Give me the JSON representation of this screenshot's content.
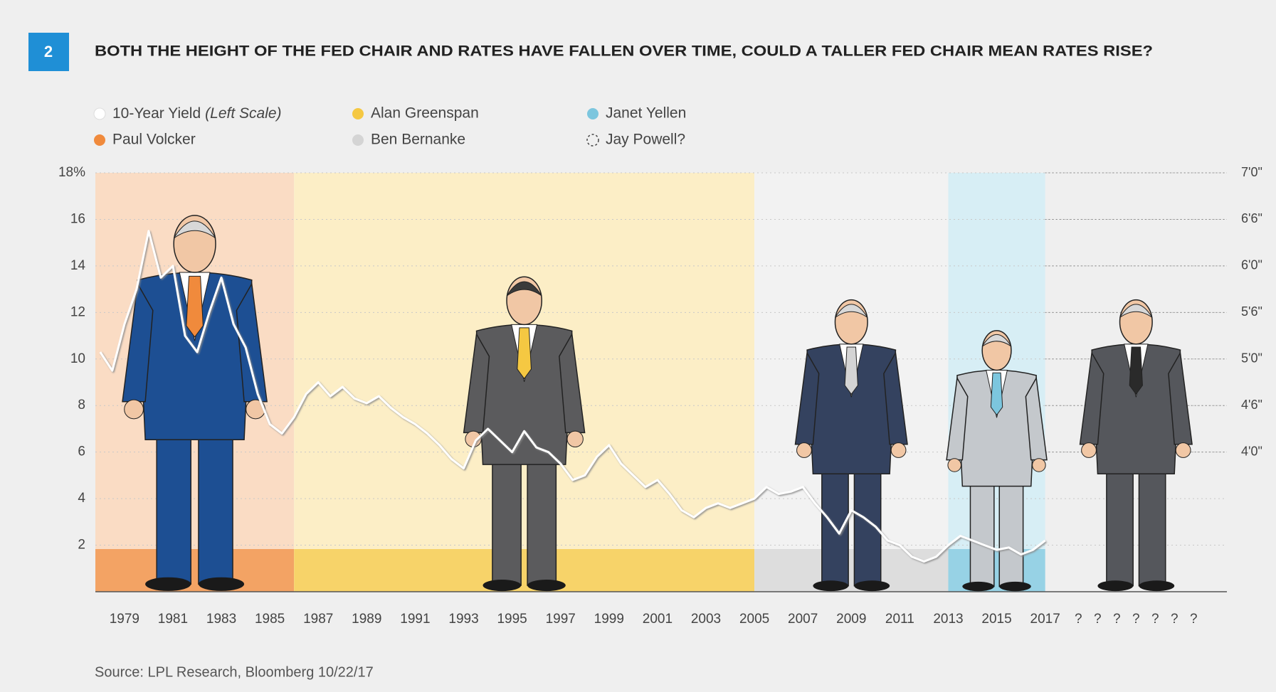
{
  "figure_number": "2",
  "source": "Source: LPL Research, Bloomberg  10/22/17",
  "chart_data": {
    "type": "line",
    "title": "BOTH THE HEIGHT OF THE FED CHAIR AND RATES HAVE FALLEN OVER TIME, COULD A TALLER FED CHAIR MEAN RATES RISE?",
    "x": [
      1978.0,
      1978.5,
      1979.0,
      1979.5,
      1980.0,
      1980.5,
      1981.0,
      1981.5,
      1982.0,
      1982.5,
      1983.0,
      1983.5,
      1984.0,
      1984.5,
      1985.0,
      1985.5,
      1986.0,
      1986.5,
      1987.0,
      1987.5,
      1988.0,
      1988.5,
      1989.0,
      1989.5,
      1990.0,
      1990.5,
      1991.0,
      1991.5,
      1992.0,
      1992.5,
      1993.0,
      1993.5,
      1994.0,
      1994.5,
      1995.0,
      1995.5,
      1996.0,
      1996.5,
      1997.0,
      1997.5,
      1998.0,
      1998.5,
      1999.0,
      1999.5,
      2000.0,
      2000.5,
      2001.0,
      2001.5,
      2002.0,
      2002.5,
      2003.0,
      2003.5,
      2004.0,
      2004.5,
      2005.0,
      2005.5,
      2006.0,
      2006.5,
      2007.0,
      2007.5,
      2008.0,
      2008.5,
      2009.0,
      2009.5,
      2010.0,
      2010.5,
      2011.0,
      2011.5,
      2012.0,
      2012.5,
      2013.0,
      2013.5,
      2014.0,
      2014.5,
      2015.0,
      2015.5,
      2016.0,
      2016.5,
      2017.0
    ],
    "series": [
      {
        "name": "10-Year Yield",
        "name_note": "(Left Scale)",
        "color": "#ffffff",
        "values": [
          10.3,
          9.5,
          11.5,
          13.0,
          15.5,
          13.5,
          14.0,
          11.0,
          10.3,
          12.0,
          13.5,
          11.5,
          10.5,
          8.5,
          7.2,
          6.8,
          7.5,
          8.5,
          9.0,
          8.4,
          8.8,
          8.3,
          8.1,
          8.4,
          7.9,
          7.5,
          7.2,
          6.8,
          6.3,
          5.7,
          5.3,
          6.5,
          7.0,
          6.5,
          6.0,
          6.9,
          6.2,
          6.0,
          5.5,
          4.8,
          5.0,
          5.8,
          6.3,
          5.5,
          5.0,
          4.5,
          4.8,
          4.2,
          3.5,
          3.2,
          3.6,
          3.8,
          3.6,
          3.8,
          4.0,
          4.5,
          4.2,
          4.3,
          4.5,
          3.8,
          3.2,
          2.5,
          3.5,
          3.2,
          2.8,
          2.2,
          2.0,
          1.5,
          1.3,
          1.5,
          2.0,
          2.4,
          2.2,
          2.0,
          1.8,
          1.9,
          1.6,
          1.8,
          2.2
        ]
      }
    ],
    "eras": [
      {
        "name": "Paul Volcker",
        "color": "#f08a3c",
        "start": 1977.8,
        "end": 1986,
        "height": 79
      },
      {
        "name": "Alan Greenspan",
        "color": "#f5c842",
        "start": 1986,
        "end": 2005,
        "height": 71
      },
      {
        "name": "Ben Bernanke",
        "color": "#d4d4d4",
        "start": 2005,
        "end": 2013,
        "height": 68
      },
      {
        "name": "Janet Yellen",
        "color": "#7cc6de",
        "start": 2013,
        "end": 2017,
        "height": 64
      },
      {
        "name": "Jay Powell?",
        "start": 2017,
        "height": 68
      }
    ],
    "xlim": [
      1977.8,
      2024.5
    ],
    "xticks": [
      1979,
      1981,
      1983,
      1985,
      1987,
      1989,
      1991,
      1993,
      1995,
      1997,
      1999,
      2001,
      2003,
      2005,
      2007,
      2009,
      2011,
      2013,
      2015,
      2017
    ],
    "future_ticks": [
      "?",
      "?",
      "?",
      "?",
      "?",
      "?",
      "?"
    ],
    "ylim": [
      0,
      18
    ],
    "yticks": [
      2,
      4,
      6,
      8,
      10,
      12,
      14,
      16,
      {
        "value": 18,
        "label": "18%"
      }
    ],
    "y2lim": [
      30,
      84
    ],
    "y2ticks": [
      {
        "value": 48,
        "label": "4'0\""
      },
      {
        "value": 54,
        "label": "4'6\""
      },
      {
        "value": 60,
        "label": "5'0\""
      },
      {
        "value": 66,
        "label": "5'6\""
      },
      {
        "value": 72,
        "label": "6'0\""
      },
      {
        "value": 78,
        "label": "6'6\""
      },
      {
        "value": 84,
        "label": "7'0\""
      }
    ],
    "grid": true
  }
}
